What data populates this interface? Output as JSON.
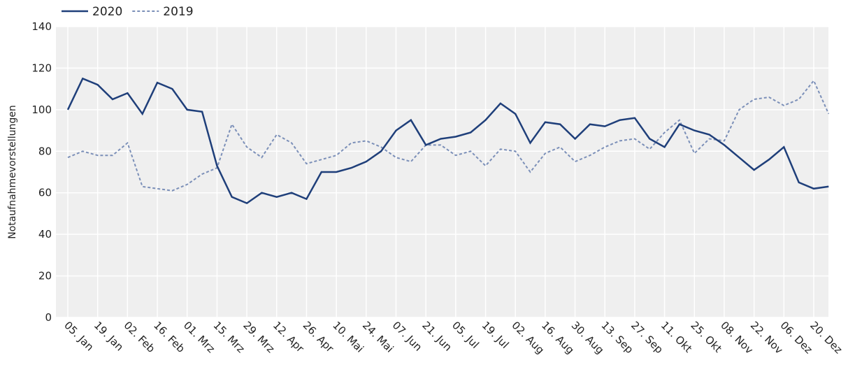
{
  "chart_data": {
    "type": "line",
    "y_label": "Notaufnahmevorstellungen",
    "categories": [
      "05. Jan",
      null,
      "19. Jan",
      null,
      "02. Feb",
      null,
      "16. Feb",
      null,
      "01. Mrz",
      null,
      "15. Mrz",
      null,
      "29. Mrz",
      null,
      "12. Apr",
      null,
      "26. Apr",
      null,
      "10. Mai",
      null,
      "24. Mai",
      null,
      "07. Jun",
      null,
      "21. Jun",
      null,
      "05. Jul",
      null,
      "19. Jul",
      null,
      "02. Aug",
      null,
      "16. Aug",
      null,
      "30. Aug",
      null,
      "13. Sep",
      null,
      "27. Sep",
      null,
      "11. Okt",
      null,
      "25. Okt",
      null,
      "08. Nov",
      null,
      "22. Nov",
      null,
      "06. Dez",
      null,
      "20. Dez",
      null
    ],
    "series": [
      {
        "name": "2020",
        "color": "#1f3f7a",
        "dash": false,
        "values": [
          100,
          115,
          112,
          105,
          108,
          98,
          113,
          110,
          100,
          99,
          73,
          58,
          55,
          60,
          58,
          60,
          57,
          70,
          70,
          72,
          75,
          80,
          90,
          95,
          83,
          86,
          87,
          89,
          95,
          103,
          98,
          84,
          94,
          93,
          86,
          93,
          92,
          95,
          96,
          86,
          82,
          93,
          90,
          88,
          83,
          77,
          71,
          76,
          82,
          65,
          62,
          63
        ]
      },
      {
        "name": "2019",
        "color": "#7b8fb8",
        "dash": true,
        "values": [
          77,
          80,
          78,
          78,
          84,
          63,
          62,
          61,
          64,
          69,
          72,
          93,
          82,
          77,
          88,
          84,
          74,
          76,
          78,
          84,
          85,
          82,
          77,
          75,
          83,
          83,
          78,
          80,
          73,
          81,
          80,
          70,
          79,
          82,
          75,
          78,
          82,
          85,
          86,
          81,
          89,
          95,
          79,
          86,
          85,
          100,
          105,
          106,
          102,
          105,
          114,
          98
        ]
      }
    ],
    "ylim": [
      0,
      140
    ],
    "yticks": [
      0,
      20,
      40,
      60,
      80,
      100,
      120,
      140
    ],
    "grid": true
  }
}
